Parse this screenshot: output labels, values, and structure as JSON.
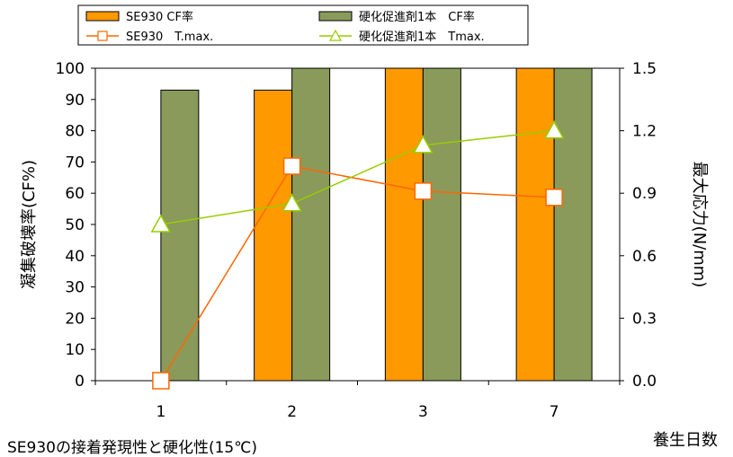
{
  "chart_data": {
    "type": "bar",
    "categories": [
      "1",
      "2",
      "3",
      "7"
    ],
    "series": [
      {
        "name": "SE930 CF率",
        "kind": "bar",
        "axis": "left",
        "color": "#FF9900",
        "values": [
          0,
          93,
          100,
          100
        ]
      },
      {
        "name": "硬化促進剤1本　CF率",
        "kind": "bar",
        "axis": "left",
        "color": "#8A9A5B",
        "values": [
          93,
          100,
          100,
          100
        ]
      },
      {
        "name": "SE930　T.max.",
        "kind": "line",
        "axis": "right",
        "color": "#FF6600",
        "marker": "square",
        "values": [
          0.0,
          1.03,
          0.91,
          0.88
        ]
      },
      {
        "name": "硬化促進剤1本　Tmax.",
        "kind": "line",
        "axis": "right",
        "color": "#99CC00",
        "marker": "triangle",
        "values": [
          0.75,
          0.85,
          1.13,
          1.2
        ]
      }
    ],
    "ylabel": "凝集破壊率(CF%)",
    "ylim": [
      0,
      100
    ],
    "yticks": [
      "0",
      "10",
      "20",
      "30",
      "40",
      "50",
      "60",
      "70",
      "80",
      "90",
      "100"
    ],
    "y2label": "最大応力(N/mm)",
    "y2lim": [
      0,
      1.5
    ],
    "y2ticks": [
      "0.0",
      "0.3",
      "0.6",
      "0.9",
      "1.2",
      "1.5"
    ],
    "xlabel": "養生日数",
    "grid": false,
    "legend": "top"
  },
  "caption": "SE930の接着発現性と硬化性(15℃)"
}
